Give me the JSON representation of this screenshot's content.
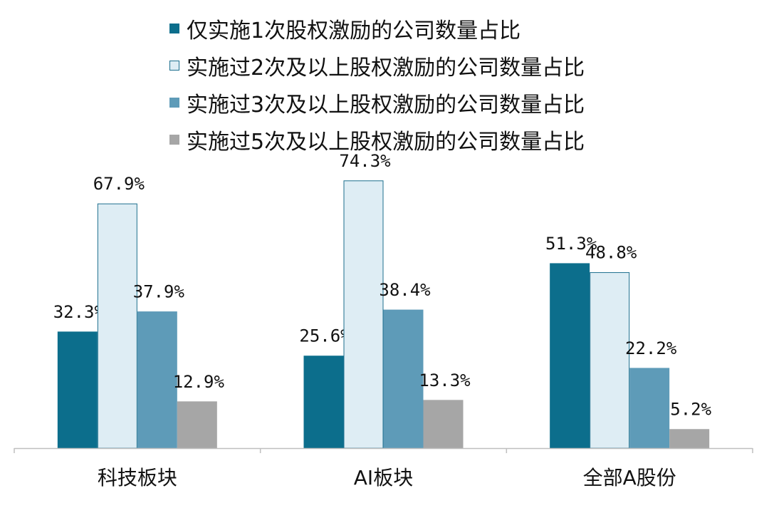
{
  "chart_data": {
    "type": "bar",
    "categories": [
      "科技板块",
      "AI板块",
      "全部A股份"
    ],
    "series": [
      {
        "name": "仅实施1次股权激励的公司数量占比",
        "values": [
          32.3,
          25.6,
          51.3
        ],
        "labels": [
          "32.3%",
          "25.6%",
          "51.3%"
        ],
        "color": "#0c6e8c",
        "border": "#0c6e8c"
      },
      {
        "name": "实施过2次及以上股权激励的公司数量占比",
        "values": [
          67.9,
          74.3,
          48.8
        ],
        "labels": [
          "67.9%",
          "74.3%",
          "48.8%"
        ],
        "color": "#deedf4",
        "border": "#1d6f8e"
      },
      {
        "name": "实施过3次及以上股权激励的公司数量占比",
        "values": [
          37.9,
          38.4,
          22.2
        ],
        "labels": [
          "37.9%",
          "38.4%",
          "22.2%"
        ],
        "color": "#5e9bb8",
        "border": "#5e9bb8"
      },
      {
        "name": "实施过5次及以上股权激励的公司数量占比",
        "values": [
          12.9,
          13.3,
          5.2
        ],
        "labels": [
          "12.9%",
          "13.3%",
          "5.2%"
        ],
        "color": "#a6a6a6",
        "border": "#a6a6a6"
      }
    ],
    "ylim": [
      0,
      80
    ],
    "grid": false,
    "legend_position": "top"
  }
}
